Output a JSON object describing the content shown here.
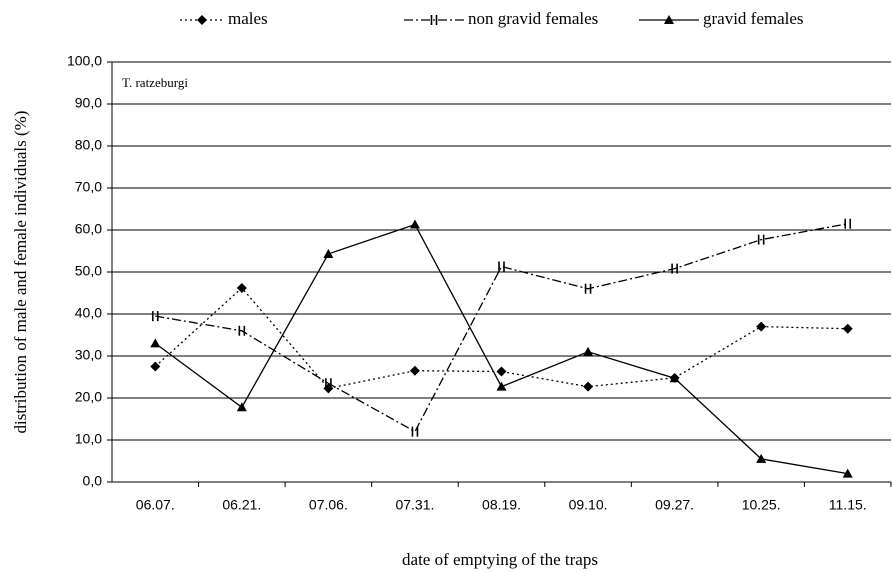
{
  "chart_data": {
    "type": "line",
    "annotation": "T. ratzeburgi",
    "x_label": "date of emptying of the traps",
    "y_label": "distribution of male and female individuals (%)",
    "categories": [
      "06.07.",
      "06.21.",
      "07.06.",
      "07.31.",
      "08.19.",
      "09.10.",
      "09.27.",
      "10.25.",
      "11.15."
    ],
    "series": [
      {
        "name": "males",
        "color": "#000000",
        "values": [
          27.5,
          46.2,
          22.3,
          26.5,
          26.3,
          22.7,
          24.8,
          37.0,
          36.5
        ]
      },
      {
        "name": "non gravid females",
        "color": "#000000",
        "values": [
          39.5,
          36.0,
          23.5,
          12.0,
          51.3,
          46.0,
          50.8,
          57.7,
          61.5
        ]
      },
      {
        "name": "gravid females",
        "color": "#000000",
        "values": [
          33.0,
          17.8,
          54.3,
          61.3,
          22.7,
          31.0,
          24.7,
          5.5,
          2.0
        ]
      }
    ],
    "ylim": [
      0,
      100
    ],
    "yticks": [
      {
        "value": 0,
        "label": "0,0"
      },
      {
        "value": 10,
        "label": "10,0"
      },
      {
        "value": 20,
        "label": "20,0"
      },
      {
        "value": 30,
        "label": "30,0"
      },
      {
        "value": 40,
        "label": "40,0"
      },
      {
        "value": 50,
        "label": "50,0"
      },
      {
        "value": 60,
        "label": "60,0"
      },
      {
        "value": 70,
        "label": "70,0"
      },
      {
        "value": 80,
        "label": "80,0"
      },
      {
        "value": 90,
        "label": "90,0"
      },
      {
        "value": {
          "value": 100,
          "label": "100,0"
        }
      }
    ],
    "grid": true,
    "legend": "top"
  }
}
